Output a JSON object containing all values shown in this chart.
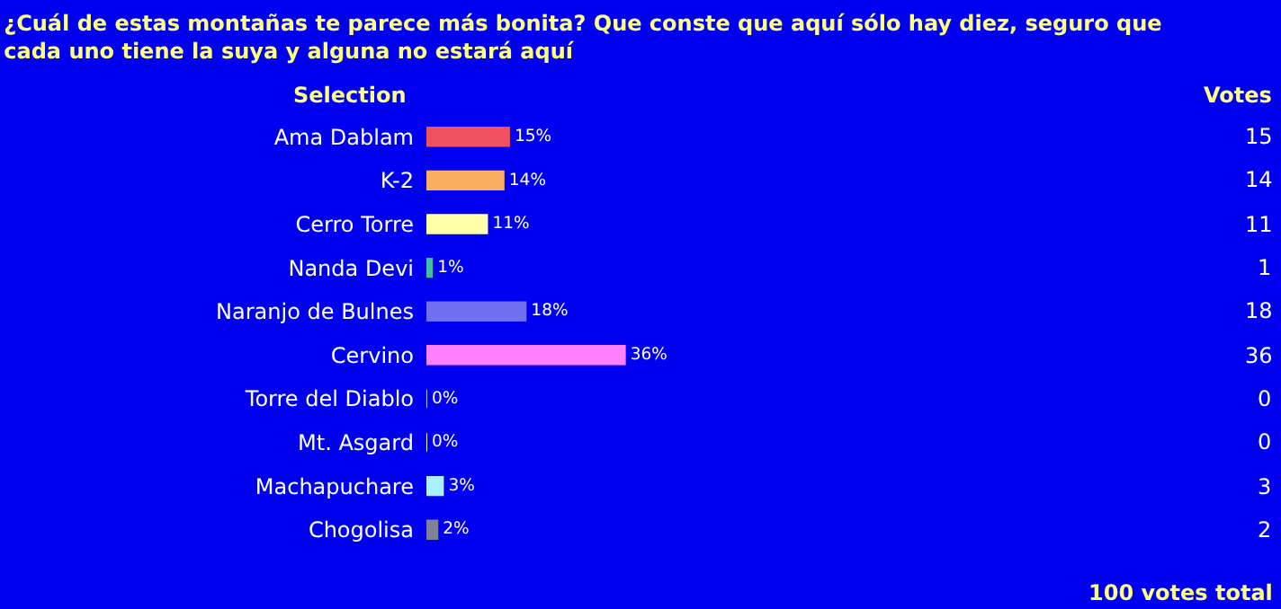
{
  "chart_data": {
    "type": "bar",
    "orientation": "horizontal",
    "title": "¿Cuál de estas montañas te parece más bonita? Que conste que aquí sólo hay diez, seguro que cada uno tiene la suya y alguna no estará aquí",
    "categories": [
      "Ama Dablam",
      "K-2",
      "Cerro Torre",
      "Nanda Devi",
      "Naranjo de Bulnes",
      "Cervino",
      "Torre del Diablo",
      "Mt. Asgard",
      "Machapuchare",
      "Chogolisa"
    ],
    "values": [
      15,
      14,
      11,
      1,
      18,
      36,
      0,
      0,
      3,
      2
    ],
    "colors": [
      "#f05060",
      "#f8b060",
      "#ffffa8",
      "#40c0a0",
      "#7070f0",
      "#ff80ff",
      "#c0c0ff",
      "#ffffff",
      "#a8f0ff",
      "#808098"
    ],
    "value_labels": [
      "15%",
      "14%",
      "11%",
      "1%",
      "18%",
      "36%",
      "0%",
      "0%",
      "3%",
      "2%"
    ],
    "xlim": [
      0,
      155
    ],
    "tick_labels": "y",
    "grid": false,
    "legend": false,
    "annotations": [
      "Selection",
      "Votes",
      "100 votes total",
      "15",
      "14",
      "11",
      "1",
      "18",
      "36",
      "0",
      "0",
      "3",
      "2"
    ]
  }
}
